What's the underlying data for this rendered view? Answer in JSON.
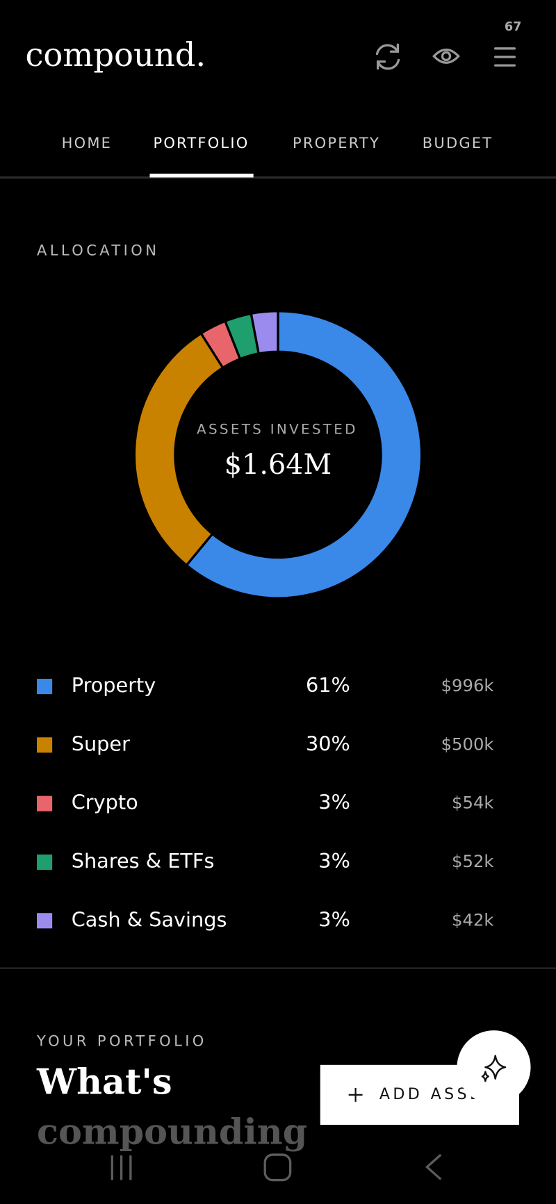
{
  "header": {
    "badge": "67",
    "logo": "compound."
  },
  "tabs": [
    "HOME",
    "PORTFOLIO",
    "PROPERTY",
    "BUDGET"
  ],
  "allocation": {
    "heading": "ALLOCATION",
    "center_label": "ASSETS INVESTED",
    "center_value": "$1.64M",
    "amounts": [
      "$996k",
      "$500k",
      "$54k",
      "$52k",
      "$42k"
    ]
  },
  "chart_data": {
    "type": "donut",
    "categories": [
      "Property",
      "Super",
      "Crypto",
      "Shares & ETFs",
      "Cash & Savings"
    ],
    "values": [
      61,
      30,
      3,
      3,
      3
    ],
    "value_labels": [
      "61%",
      "30%",
      "3%",
      "3%",
      "3%"
    ],
    "colors": [
      "#3a88e8",
      "#c98100",
      "#e8666b",
      "#1f9e6e",
      "#9b8bef"
    ]
  },
  "portfolio": {
    "eyebrow": "YOUR PORTFOLIO",
    "title_line1": "What's",
    "title_line2": "compounding",
    "button": "ADD ASSET"
  }
}
